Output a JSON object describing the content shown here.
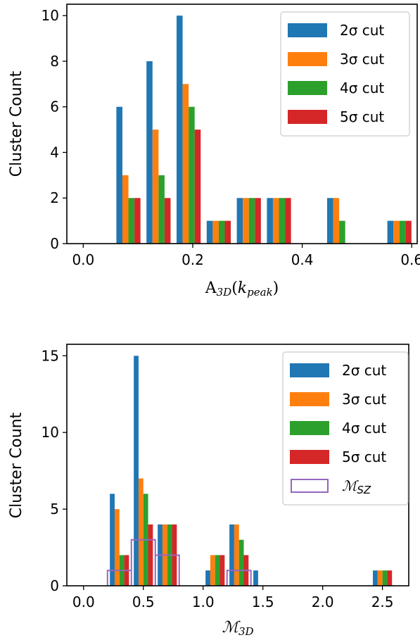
{
  "chart_data": [
    {
      "type": "bar",
      "ylabel": "Cluster Count",
      "xlabel": "A3D(kpeak)",
      "xlim": [
        -0.03,
        0.61
      ],
      "ylim": [
        0,
        10.5
      ],
      "xticks": [
        "0.0",
        "0.2",
        "0.4",
        "0.6"
      ],
      "xtick_values": [
        0.0,
        0.2,
        0.4,
        0.6
      ],
      "yticks": [
        "0",
        "2",
        "4",
        "6",
        "8",
        "10"
      ],
      "ytick_values": [
        0,
        2,
        4,
        6,
        8,
        10
      ],
      "legend_position": "upper right",
      "bin_edges": [
        0.055,
        0.11,
        0.165,
        0.22,
        0.275,
        0.33,
        0.385,
        0.44,
        0.495,
        0.55,
        0.605
      ],
      "series": [
        {
          "name": "2σ cut",
          "color": "#1f77b4",
          "values": [
            6,
            8,
            10,
            1,
            2,
            2,
            0,
            2,
            0,
            1
          ]
        },
        {
          "name": "3σ cut",
          "color": "#ff7f0e",
          "values": [
            3,
            5,
            7,
            1,
            2,
            2,
            0,
            2,
            0,
            1
          ]
        },
        {
          "name": "4σ cut",
          "color": "#2ca02c",
          "values": [
            2,
            3,
            6,
            1,
            2,
            2,
            0,
            1,
            0,
            1
          ]
        },
        {
          "name": "5σ cut",
          "color": "#d62728",
          "values": [
            2,
            2,
            5,
            1,
            2,
            2,
            0,
            0,
            0,
            1
          ]
        }
      ]
    },
    {
      "type": "bar",
      "ylabel": "Cluster Count",
      "xlabel": "M3D",
      "xlim": [
        -0.14,
        2.72
      ],
      "ylim": [
        0,
        15.75
      ],
      "xticks": [
        "0.0",
        "0.5",
        "1.0",
        "1.5",
        "2.0",
        "2.5"
      ],
      "xtick_values": [
        0.0,
        0.5,
        1.0,
        1.5,
        2.0,
        2.5
      ],
      "yticks": [
        "0",
        "5",
        "10",
        "15"
      ],
      "ytick_values": [
        0,
        5,
        10,
        15
      ],
      "legend_position": "upper right",
      "bin_edges": [
        0.2,
        0.4,
        0.6,
        0.8,
        1.0,
        1.2,
        1.4,
        1.6,
        1.8,
        2.0,
        2.2,
        2.4,
        2.6
      ],
      "series": [
        {
          "name": "2σ cut",
          "color": "#1f77b4",
          "values": [
            6,
            15,
            4,
            0,
            1,
            4,
            1,
            0,
            0,
            0,
            0,
            1
          ]
        },
        {
          "name": "3σ cut",
          "color": "#ff7f0e",
          "values": [
            5,
            7,
            4,
            0,
            2,
            4,
            0,
            0,
            0,
            0,
            0,
            1
          ]
        },
        {
          "name": "4σ cut",
          "color": "#2ca02c",
          "values": [
            2,
            6,
            4,
            0,
            2,
            3,
            0,
            0,
            0,
            0,
            0,
            1
          ]
        },
        {
          "name": "5σ cut",
          "color": "#d62728",
          "values": [
            2,
            4,
            4,
            0,
            2,
            2,
            0,
            0,
            0,
            0,
            0,
            1
          ]
        }
      ],
      "step_series": {
        "name": "MSZ",
        "color": "#9467bd",
        "bin_edges": [
          0.2,
          0.4,
          0.6,
          0.8,
          1.0,
          1.2,
          1.4
        ],
        "values": [
          1,
          3,
          2,
          0,
          0,
          1
        ]
      }
    }
  ]
}
